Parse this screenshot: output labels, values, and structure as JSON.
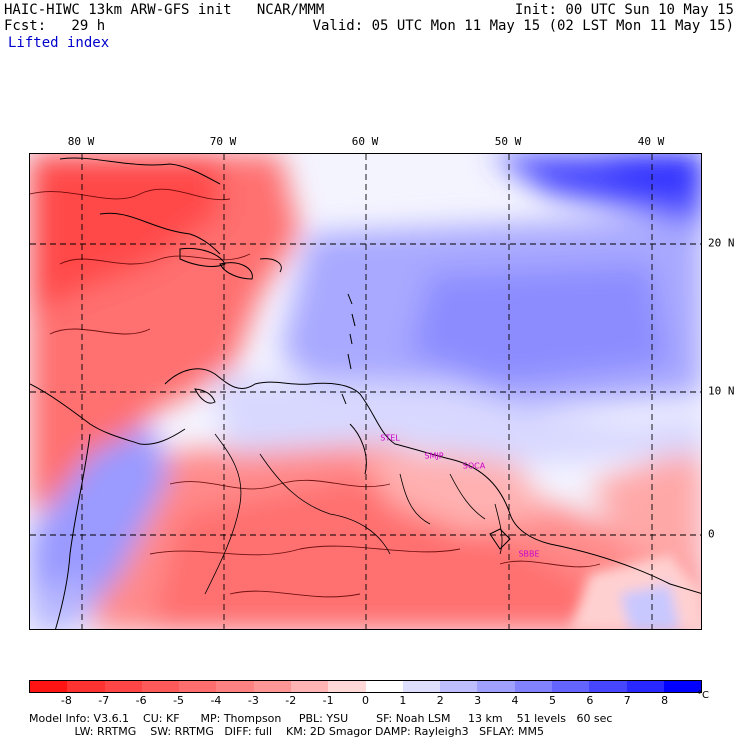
{
  "header": {
    "model_title": "HAIC-HIWC 13km ARW-GFS init   NCAR/MMM",
    "forecast_label": "Fcst:   29 h",
    "field_name": "Lifted index",
    "init_time": "Init: 00 UTC Sun 10 May 15",
    "valid_time": "Valid: 05 UTC Mon 11 May 15 (02 LST Mon 11 May 15)"
  },
  "map": {
    "lon_labels": [
      "80 W",
      "70 W",
      "60 W",
      "50 W",
      "40 W"
    ],
    "lat_labels": [
      "20 N",
      "10 N",
      "0"
    ],
    "cities": [
      "STEL",
      "SMJP",
      "SOCA",
      "SBBE"
    ],
    "colors": {
      "city": "#cc00cc",
      "coast": "#000000",
      "grid": "#000000"
    }
  },
  "colorbar": {
    "tick_labels": [
      "-8",
      "-7",
      "-6",
      "-5",
      "-4",
      "-3",
      "-2",
      "-1",
      "0",
      "1",
      "2",
      "3",
      "4",
      "5",
      "6",
      "7",
      "8"
    ],
    "unit": "°C",
    "colors": [
      "#ff1414",
      "#ff3232",
      "#ff4646",
      "#ff5a5a",
      "#ff6e6e",
      "#ff8282",
      "#ff9696",
      "#ffb4b4",
      "#ffd8d8",
      "#ffffff",
      "#dedeff",
      "#bebeff",
      "#a0a0ff",
      "#8282ff",
      "#6464ff",
      "#4646ff",
      "#2828ff",
      "#0000ff"
    ]
  },
  "footer": {
    "line1": "Model Info: V3.6.1    CU: KF      MP: Thompson     PBL: YSU        SF: Noah LSM     13 km    51 levels   60 sec",
    "line2": "             LW: RRTMG    SW: RRTMG   DIFF: full    KM: 2D Smagor DAMP: Rayleigh3   SFLAY: MM5"
  }
}
